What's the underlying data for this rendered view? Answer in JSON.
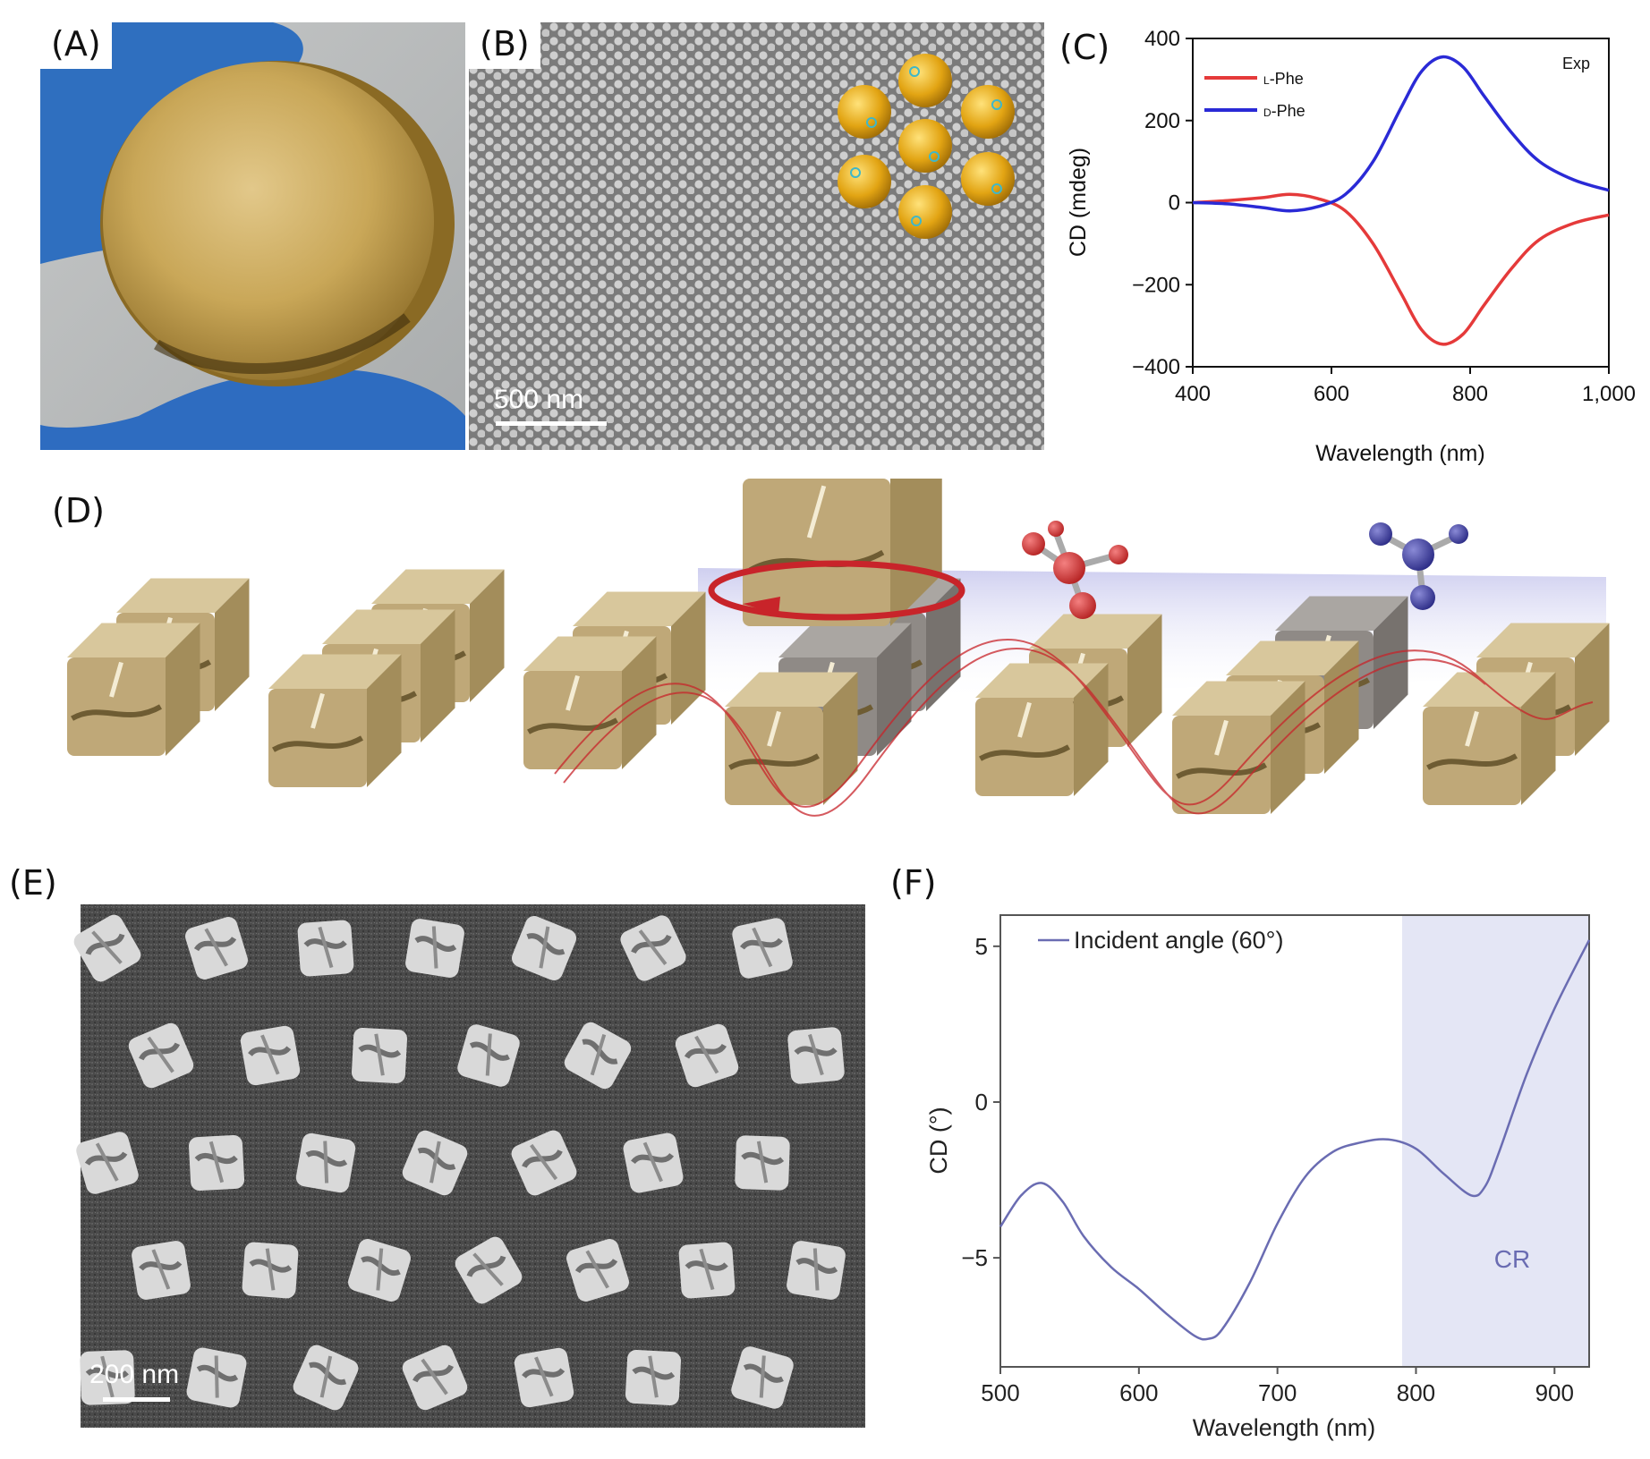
{
  "panels": {
    "A": {
      "label": "(A)"
    },
    "B": {
      "label": "(B)",
      "scalebar": "500 nm"
    },
    "C": {
      "label": "(C)"
    },
    "D": {
      "label": "(D)"
    },
    "E": {
      "label": "(E)",
      "scalebar": "200 nm"
    },
    "F": {
      "label": "(F)"
    }
  },
  "colors": {
    "gold": "#c9a548",
    "glove": "#2f6fbf",
    "red": "#e53a3a",
    "blue": "#2a2ad6",
    "purple": "#6a6cb2",
    "cr_band": "#e4e6f5"
  },
  "chart_data": [
    {
      "panel": "C",
      "type": "line",
      "xlabel": "Wavelength (nm)",
      "ylabel": "CD (mdeg)",
      "annotation": "Exp",
      "xlim": [
        400,
        1000
      ],
      "ylim": [
        -400,
        400
      ],
      "xticks": [
        "400",
        "600",
        "800",
        "1,000"
      ],
      "yticks": [
        "−400",
        "−200",
        "0",
        "200",
        "400"
      ],
      "legend_position": "top-left",
      "series": [
        {
          "name": "L-Phe",
          "legend_prefix": "L",
          "legend_suffix": "-Phe",
          "color": "#e53a3a",
          "x": [
            400,
            450,
            500,
            540,
            580,
            620,
            660,
            700,
            730,
            760,
            790,
            820,
            860,
            900,
            950,
            1000
          ],
          "y": [
            0,
            5,
            12,
            20,
            10,
            -20,
            -100,
            -220,
            -310,
            -345,
            -320,
            -250,
            -160,
            -90,
            -50,
            -30
          ]
        },
        {
          "name": "D-Phe",
          "legend_prefix": "D",
          "legend_suffix": "-Phe",
          "color": "#2a2ad6",
          "x": [
            400,
            450,
            500,
            540,
            580,
            620,
            660,
            700,
            730,
            760,
            790,
            820,
            860,
            900,
            950,
            1000
          ],
          "y": [
            0,
            -3,
            -12,
            -20,
            -10,
            20,
            100,
            230,
            320,
            355,
            330,
            260,
            170,
            100,
            55,
            30
          ]
        }
      ]
    },
    {
      "panel": "F",
      "type": "line",
      "xlabel": "Wavelength (nm)",
      "ylabel": "CD (°)",
      "xlim": [
        500,
        925
      ],
      "ylim": [
        -8.5,
        6
      ],
      "xticks": [
        "500",
        "600",
        "700",
        "800",
        "900"
      ],
      "yticks": [
        "5",
        "0",
        "−5"
      ],
      "legend_position": "top-left",
      "shaded_region": {
        "x": [
          790,
          925
        ],
        "label": "CR"
      },
      "series": [
        {
          "name": "Incident angle (60°)",
          "color": "#6a6cb2",
          "x": [
            500,
            515,
            530,
            545,
            560,
            580,
            600,
            620,
            640,
            650,
            660,
            680,
            700,
            720,
            740,
            760,
            780,
            800,
            820,
            840,
            850,
            860,
            880,
            900,
            925
          ],
          "y": [
            -4.0,
            -3.0,
            -2.6,
            -3.2,
            -4.3,
            -5.3,
            -6.0,
            -6.8,
            -7.5,
            -7.6,
            -7.3,
            -5.8,
            -3.9,
            -2.4,
            -1.6,
            -1.3,
            -1.2,
            -1.5,
            -2.3,
            -3.0,
            -2.7,
            -1.6,
            0.9,
            3.0,
            5.2
          ]
        }
      ]
    }
  ]
}
